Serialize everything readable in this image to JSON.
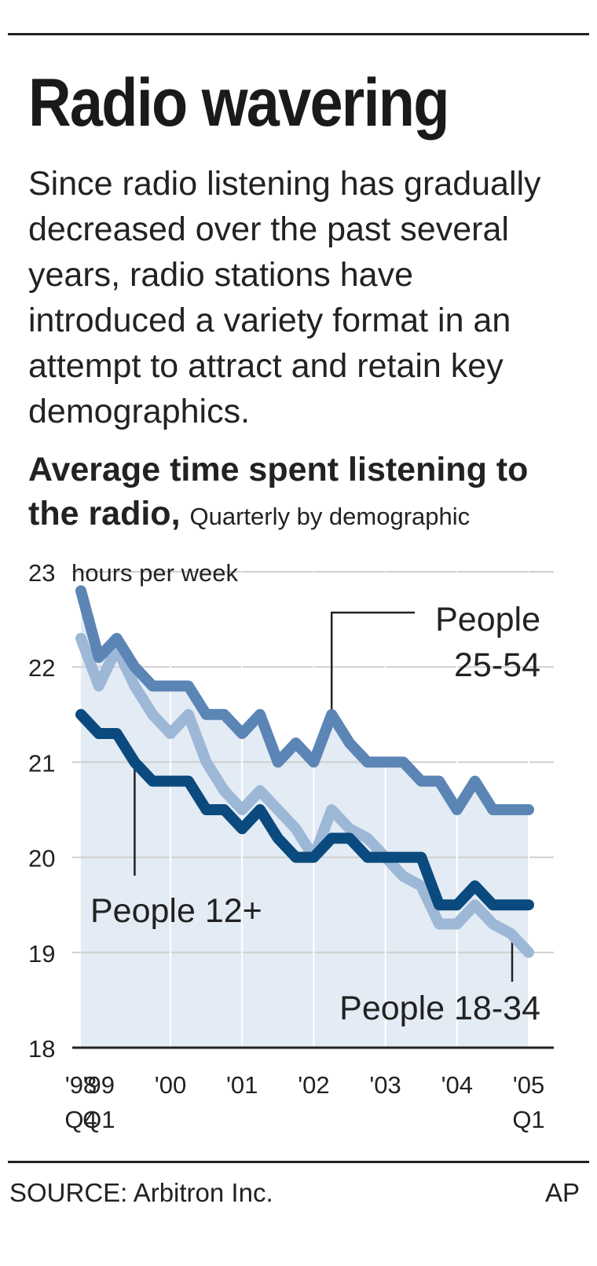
{
  "header": {
    "title": "Radio wavering",
    "intro": "Since radio listening has gradually decreased over the past several years, radio stations have introduced a variety format in an attempt to attract and retain key demographics.",
    "subtitle_bold": "Average time spent listening to the radio,",
    "subtitle_small": "Quarterly by demographic"
  },
  "chart_data": {
    "type": "line",
    "ylabel": "hours per week",
    "ylim": [
      18,
      23
    ],
    "yticks": [
      18,
      19,
      20,
      21,
      22,
      23
    ],
    "grid": true,
    "x": [
      "'98 Q4",
      "'99 Q1",
      "'99 Q2",
      "'99 Q3",
      "'99 Q4",
      "'00 Q1",
      "'00 Q2",
      "'00 Q3",
      "'00 Q4",
      "'01 Q1",
      "'01 Q2",
      "'01 Q3",
      "'01 Q4",
      "'02 Q1",
      "'02 Q2",
      "'02 Q3",
      "'02 Q4",
      "'03 Q1",
      "'03 Q2",
      "'03 Q3",
      "'03 Q4",
      "'04 Q1",
      "'04 Q2",
      "'04 Q3",
      "'04 Q4",
      "'05 Q1"
    ],
    "xtick_labels": [
      {
        "index": 0,
        "line1": "'98",
        "line2": "Q4"
      },
      {
        "index": 1,
        "line1": "'99",
        "line2": "Q1"
      },
      {
        "index": 5,
        "line1": "'00",
        "line2": ""
      },
      {
        "index": 9,
        "line1": "'01",
        "line2": ""
      },
      {
        "index": 13,
        "line1": "'02",
        "line2": ""
      },
      {
        "index": 17,
        "line1": "'03",
        "line2": ""
      },
      {
        "index": 21,
        "line1": "'04",
        "line2": ""
      },
      {
        "index": 25,
        "line1": "'05",
        "line2": "Q1"
      }
    ],
    "series": [
      {
        "name": "People 25-54",
        "label_lines": [
          "People",
          "25-54"
        ],
        "color": "#5b85b5",
        "values": [
          22.8,
          22.1,
          22.3,
          22.0,
          21.8,
          21.8,
          21.8,
          21.5,
          21.5,
          21.3,
          21.5,
          21.0,
          21.2,
          21.0,
          21.5,
          21.2,
          21.0,
          21.0,
          21.0,
          20.8,
          20.8,
          20.5,
          20.8,
          20.5,
          20.5,
          20.5
        ]
      },
      {
        "name": "People 18-34",
        "label_lines": [
          "People 18-34"
        ],
        "color": "#9db7d6",
        "values": [
          22.3,
          21.8,
          22.2,
          21.8,
          21.5,
          21.3,
          21.5,
          21.0,
          20.7,
          20.5,
          20.7,
          20.5,
          20.3,
          20.0,
          20.5,
          20.3,
          20.2,
          20.0,
          19.8,
          19.7,
          19.3,
          19.3,
          19.5,
          19.3,
          19.2,
          19.0
        ]
      },
      {
        "name": "People 12+",
        "label_lines": [
          "People 12+"
        ],
        "color": "#0a4a7e",
        "values": [
          21.5,
          21.3,
          21.3,
          21.0,
          20.8,
          20.8,
          20.8,
          20.5,
          20.5,
          20.3,
          20.5,
          20.2,
          20.0,
          20.0,
          20.2,
          20.2,
          20.0,
          20.0,
          20.0,
          20.0,
          19.5,
          19.5,
          19.7,
          19.5,
          19.5,
          19.5
        ]
      }
    ]
  },
  "footer": {
    "source": "SOURCE:  Arbitron Inc.",
    "credit": "AP"
  }
}
